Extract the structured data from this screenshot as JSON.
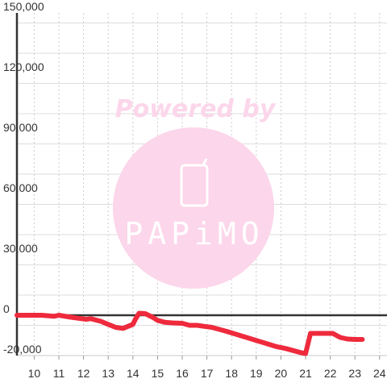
{
  "chart_data": {
    "type": "line",
    "title": "",
    "xlabel": "",
    "ylabel": "",
    "xlim": [
      9.3,
      24.3
    ],
    "ylim": [
      -20000,
      150000
    ],
    "x_ticks": [
      10,
      11,
      12,
      13,
      14,
      15,
      16,
      17,
      18,
      19,
      20,
      21,
      22,
      23,
      24
    ],
    "x_tick_labels": [
      "10",
      "11",
      "12",
      "13",
      "14",
      "15",
      "16",
      "17",
      "18",
      "19",
      "20",
      "21",
      "22",
      "23",
      "24"
    ],
    "y_ticks": [
      -20000,
      0,
      30000,
      60000,
      90000,
      120000,
      150000
    ],
    "y_tick_labels": [
      "-20,000",
      "0",
      "30,000",
      "60,000",
      "90,000",
      "120,000",
      "150,000"
    ],
    "grid": true,
    "legend": "none",
    "series": [
      {
        "color": "#ee2a3c",
        "x": [
          9.3,
          9.8,
          10.3,
          10.8,
          11.0,
          11.5,
          11.8,
          12.1,
          12.3,
          12.7,
          13.0,
          13.3,
          13.6,
          13.8,
          14.0,
          14.1,
          14.25,
          14.5,
          14.8,
          15.0,
          15.3,
          15.6,
          16.0,
          16.3,
          16.6,
          16.9,
          17.2,
          17.5,
          17.8,
          18.2,
          18.6,
          19.0,
          19.4,
          19.8,
          20.2,
          20.5,
          20.8,
          21.0,
          21.2,
          21.5,
          21.8,
          22.1,
          22.4,
          22.7,
          23.0,
          23.3
        ],
        "y": [
          0,
          0,
          0,
          -500,
          0,
          -1000,
          -1500,
          -2000,
          -1700,
          -3000,
          -4500,
          -6000,
          -6500,
          -5500,
          -4500,
          -2000,
          1000,
          800,
          -1000,
          -2500,
          -3500,
          -3800,
          -4000,
          -5000,
          -5000,
          -5500,
          -6000,
          -7000,
          -8000,
          -9500,
          -11000,
          -12500,
          -14000,
          -15500,
          -16500,
          -17500,
          -18500,
          -19000,
          -9000,
          -9000,
          -9000,
          -9000,
          -11000,
          -11800,
          -12000,
          -12000
        ]
      }
    ]
  },
  "watermark": {
    "powered_text": "Powered by",
    "logo_text": "PAPiMO",
    "color": "#fcd6ea",
    "text_color": "#ffffff"
  }
}
